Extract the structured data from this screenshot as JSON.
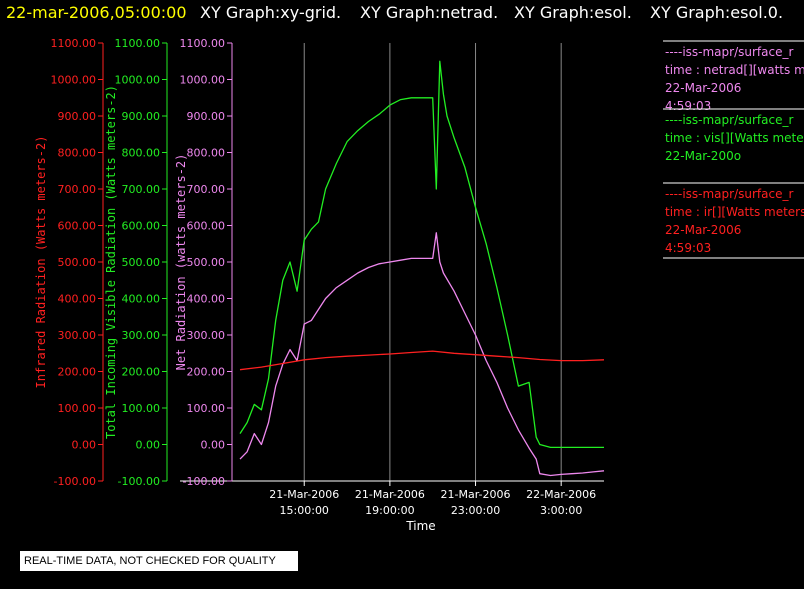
{
  "header": {
    "timestamp": "22-mar-2006,05:00:00",
    "tabs": [
      "XY Graph:xy-grid.",
      "XY Graph:netrad.",
      "XY Graph:esol.",
      "XY Graph:esol.0."
    ]
  },
  "footer": {
    "quality_note": "REAL-TIME DATA, NOT CHECKED FOR QUALITY"
  },
  "colors": {
    "ir": "#ff2020",
    "vis": "#22ee22",
    "net": "#ee88ee",
    "grid": "#888888",
    "axis": "#ffffff",
    "timestamp": "#ffff00"
  },
  "chart_data": {
    "type": "line",
    "xlabel": "Time",
    "x_ticks": [
      {
        "date": "21-Mar-2006",
        "time": "15:00:00"
      },
      {
        "date": "21-Mar-2006",
        "time": "19:00:00"
      },
      {
        "date": "21-Mar-2006",
        "time": "23:00:00"
      },
      {
        "date": "22-Mar-2006",
        "time": "3:00:00"
      }
    ],
    "xlim": [
      "2006-03-21 12:00",
      "2006-03-22 05:00"
    ],
    "grid": true,
    "y_axes": [
      {
        "id": "ir",
        "label": "Infrared Radiation (Watts meters-2)",
        "ylim": [
          -100,
          1100
        ],
        "ticks": [
          "-100.00",
          "0.00",
          "100.00",
          "200.00",
          "300.00",
          "400.00",
          "500.00",
          "600.00",
          "700.00",
          "800.00",
          "900.00",
          "1000.00",
          "1100.00"
        ]
      },
      {
        "id": "vis",
        "label": "Total Incoming Visible Radiation (Watts meters-2)",
        "ylim": [
          -100,
          1100
        ],
        "ticks": [
          "-100.00",
          "0.00",
          "100.00",
          "200.00",
          "300.00",
          "400.00",
          "500.00",
          "600.00",
          "700.00",
          "800.00",
          "900.00",
          "1000.00",
          "1100.00"
        ]
      },
      {
        "id": "net",
        "label": "Net Radiation (watts meters-2)",
        "ylim": [
          -100,
          1100
        ],
        "ticks": [
          "-100.00",
          "0.00",
          "100.00",
          "200.00",
          "300.00",
          "400.00",
          "500.00",
          "600.00",
          "700.00",
          "800.00",
          "900.00",
          "1000.00",
          "1100.00"
        ]
      }
    ],
    "legend_placement": "right",
    "legend": [
      {
        "series": "net",
        "lines": [
          "----iss-mapr/surface_r",
          "time : netrad[][watts m",
          "22-Mar-2006",
          "4:59:03"
        ]
      },
      {
        "series": "vis",
        "lines": [
          "----iss-mapr/surface_r",
          "time : vis[][Watts mete",
          "22-Mar-200o",
          ""
        ]
      },
      {
        "series": "ir",
        "lines": [
          "----iss-mapr/surface_r",
          "time : ir[][Watts meters",
          "22-Mar-2006",
          "4:59:03"
        ]
      }
    ],
    "series": [
      {
        "id": "vis",
        "x": [
          "2006-03-21 12:00",
          "2006-03-21 12:20",
          "2006-03-21 12:40",
          "2006-03-21 13:00",
          "2006-03-21 13:20",
          "2006-03-21 13:40",
          "2006-03-21 14:00",
          "2006-03-21 14:20",
          "2006-03-21 14:40",
          "2006-03-21 15:00",
          "2006-03-21 15:20",
          "2006-03-21 15:40",
          "2006-03-21 16:00",
          "2006-03-21 16:30",
          "2006-03-21 17:00",
          "2006-03-21 17:30",
          "2006-03-21 18:00",
          "2006-03-21 18:30",
          "2006-03-21 19:00",
          "2006-03-21 19:30",
          "2006-03-21 20:00",
          "2006-03-21 20:30",
          "2006-03-21 21:00",
          "2006-03-21 21:10",
          "2006-03-21 21:20",
          "2006-03-21 21:30",
          "2006-03-21 21:40",
          "2006-03-21 22:00",
          "2006-03-21 22:30",
          "2006-03-21 23:00",
          "2006-03-21 23:30",
          "2006-03-22 00:00",
          "2006-03-22 00:30",
          "2006-03-22 01:00",
          "2006-03-22 01:30",
          "2006-03-22 01:50",
          "2006-03-22 02:00",
          "2006-03-22 02:30",
          "2006-03-22 03:00",
          "2006-03-22 03:30",
          "2006-03-22 04:00",
          "2006-03-22 04:30",
          "2006-03-22 05:00"
        ],
        "values": [
          30,
          60,
          110,
          95,
          180,
          340,
          450,
          500,
          420,
          560,
          590,
          610,
          700,
          770,
          830,
          860,
          885,
          905,
          930,
          945,
          950,
          950,
          950,
          700,
          1050,
          960,
          900,
          840,
          760,
          650,
          550,
          430,
          300,
          160,
          170,
          20,
          0,
          -8,
          -8,
          -8,
          -8,
          -8,
          -8
        ]
      },
      {
        "id": "net",
        "x": [
          "2006-03-21 12:00",
          "2006-03-21 12:20",
          "2006-03-21 12:40",
          "2006-03-21 13:00",
          "2006-03-21 13:20",
          "2006-03-21 13:40",
          "2006-03-21 14:00",
          "2006-03-21 14:20",
          "2006-03-21 14:40",
          "2006-03-21 15:00",
          "2006-03-21 15:20",
          "2006-03-21 15:40",
          "2006-03-21 16:00",
          "2006-03-21 16:30",
          "2006-03-21 17:00",
          "2006-03-21 17:30",
          "2006-03-21 18:00",
          "2006-03-21 18:30",
          "2006-03-21 19:00",
          "2006-03-21 19:30",
          "2006-03-21 20:00",
          "2006-03-21 20:30",
          "2006-03-21 21:00",
          "2006-03-21 21:10",
          "2006-03-21 21:20",
          "2006-03-21 21:30",
          "2006-03-21 22:00",
          "2006-03-21 22:30",
          "2006-03-21 23:00",
          "2006-03-21 23:30",
          "2006-03-22 00:00",
          "2006-03-22 00:30",
          "2006-03-22 01:00",
          "2006-03-22 01:30",
          "2006-03-22 01:50",
          "2006-03-22 02:00",
          "2006-03-22 02:30",
          "2006-03-22 03:00",
          "2006-03-22 03:30",
          "2006-03-22 04:00",
          "2006-03-22 04:30",
          "2006-03-22 05:00"
        ],
        "values": [
          -40,
          -20,
          30,
          0,
          60,
          160,
          220,
          260,
          230,
          330,
          340,
          370,
          400,
          430,
          450,
          470,
          485,
          495,
          500,
          505,
          510,
          510,
          510,
          580,
          500,
          470,
          420,
          360,
          300,
          230,
          170,
          100,
          40,
          -10,
          -40,
          -80,
          -85,
          -82,
          -80,
          -78,
          -75,
          -72
        ]
      },
      {
        "id": "ir",
        "x": [
          "2006-03-21 12:00",
          "2006-03-21 13:00",
          "2006-03-21 14:00",
          "2006-03-21 15:00",
          "2006-03-21 16:00",
          "2006-03-21 17:00",
          "2006-03-21 18:00",
          "2006-03-21 19:00",
          "2006-03-21 20:00",
          "2006-03-21 21:00",
          "2006-03-21 22:00",
          "2006-03-21 23:00",
          "2006-03-22 00:00",
          "2006-03-22 01:00",
          "2006-03-22 02:00",
          "2006-03-22 03:00",
          "2006-03-22 04:00",
          "2006-03-22 05:00"
        ],
        "values": [
          205,
          212,
          222,
          232,
          238,
          242,
          245,
          248,
          252,
          256,
          250,
          246,
          242,
          238,
          233,
          230,
          230,
          232
        ]
      }
    ]
  }
}
